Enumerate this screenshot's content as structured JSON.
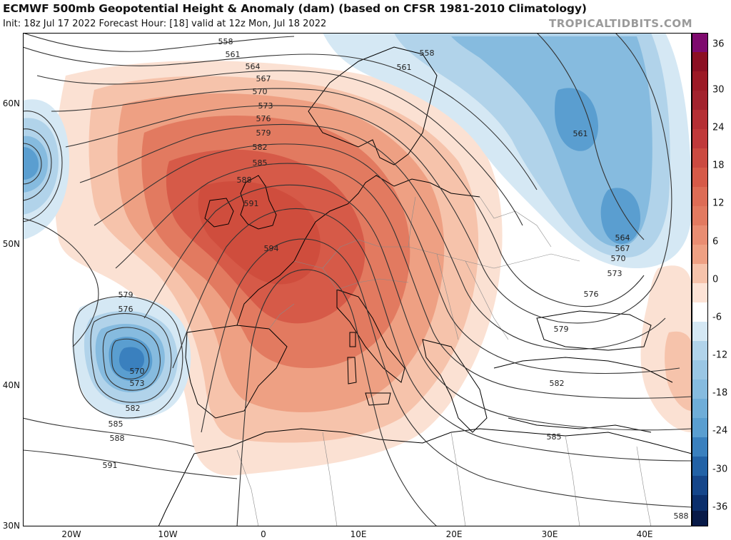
{
  "header": {
    "title": "ECMWF 500mb Geopotential Height & Anomaly (dam) (based on CFSR 1981-2010 Climatology)",
    "subtitle": "Init: 18z Jul 17 2022   Forecast Hour: [18]   valid at 12z Mon, Jul 18 2022",
    "brand": "TROPICALTIDBITS.COM"
  },
  "map": {
    "latitude_labels": [
      "60N",
      "50N",
      "40N",
      "30N"
    ],
    "longitude_labels": [
      "20W",
      "10W",
      "0",
      "10E",
      "20E",
      "30E",
      "40E"
    ],
    "contour_labels": [
      "558",
      "561",
      "564",
      "567",
      "570",
      "573",
      "576",
      "579",
      "582",
      "585",
      "588",
      "591",
      "594",
      "558",
      "561",
      "561",
      "564",
      "567",
      "570",
      "573",
      "576",
      "579",
      "582",
      "585",
      "588",
      "579",
      "576",
      "570",
      "573",
      "582",
      "585",
      "588",
      "591"
    ],
    "colors": {
      "ocean": "#ffffff",
      "coastline": "#000000",
      "borders": "#7a7a7a",
      "contour": "#333333"
    }
  },
  "colorbar": {
    "ticks": [
      "36",
      "30",
      "24",
      "18",
      "12",
      "6",
      "0",
      "-6",
      "-12",
      "-18",
      "-24",
      "-30",
      "-36"
    ],
    "colors": [
      "#7e0a6e",
      "#8c1023",
      "#a3232e",
      "#c0393a",
      "#d65a48",
      "#e27a60",
      "#eea083",
      "#f6c3ab",
      "#fde3d6",
      "#ffffff",
      "#d5e8f4",
      "#b1d3ea",
      "#86bbdf",
      "#5a9ed0",
      "#3a80be",
      "#2262a6",
      "#15468a",
      "#0b2f6c",
      "#081a48"
    ]
  }
}
